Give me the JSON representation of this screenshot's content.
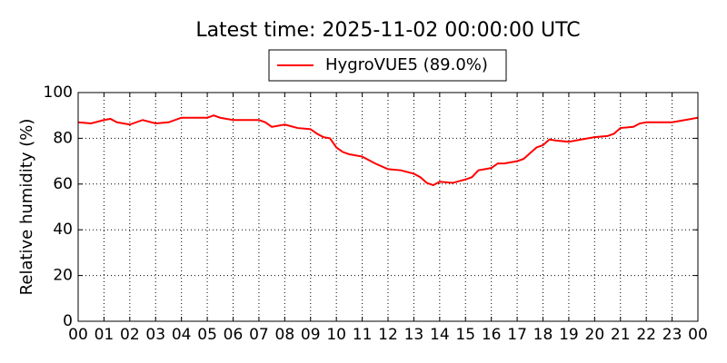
{
  "chart_data": {
    "type": "line",
    "title": "Latest time: 2025-11-02 00:00:00 UTC",
    "ylabel": "Relative humidity (%)",
    "x": [
      0,
      0.5,
      1,
      1.25,
      1.5,
      2,
      2.5,
      3,
      3.5,
      4,
      4.5,
      5,
      5.25,
      5.5,
      6,
      6.5,
      7,
      7.25,
      7.5,
      8,
      8.5,
      9,
      9.25,
      9.5,
      9.75,
      10,
      10.25,
      10.5,
      11,
      11.5,
      12,
      12.5,
      13,
      13.25,
      13.5,
      13.75,
      14,
      14.5,
      15,
      15.25,
      15.5,
      16,
      16.25,
      16.5,
      17,
      17.25,
      17.5,
      17.75,
      18,
      18.25,
      18.5,
      19,
      19.5,
      20,
      20.5,
      20.75,
      21,
      21.5,
      21.75,
      22,
      22.5,
      23,
      23.5,
      24
    ],
    "series": [
      {
        "name": "HygroVUE5 (89.0%)",
        "color": "#ff0000",
        "values": [
          87,
          86.5,
          88,
          88.5,
          87,
          86,
          88,
          86.5,
          87,
          89,
          89,
          89,
          90,
          89,
          88,
          88,
          88,
          87,
          85,
          86,
          84.5,
          84,
          82,
          80.5,
          80,
          76,
          74,
          73,
          72,
          69,
          66.5,
          66,
          64.5,
          63,
          60.5,
          59.5,
          61,
          60.5,
          62,
          63,
          66,
          67,
          69,
          69,
          70,
          71,
          73.5,
          76,
          77,
          79.5,
          79,
          78.5,
          79.5,
          80.5,
          81,
          82,
          84.5,
          85,
          86.5,
          87,
          87,
          87,
          88,
          89
        ]
      }
    ],
    "xlim": [
      0,
      24
    ],
    "xticks": [
      {
        "value": 0,
        "label": "00"
      },
      {
        "value": 1,
        "label": "01"
      },
      {
        "value": 2,
        "label": "02"
      },
      {
        "value": 3,
        "label": "03"
      },
      {
        "value": 4,
        "label": "04"
      },
      {
        "value": 5,
        "label": "05"
      },
      {
        "value": 6,
        "label": "06"
      },
      {
        "value": 7,
        "label": "07"
      },
      {
        "value": 8,
        "label": "08"
      },
      {
        "value": 9,
        "label": "09"
      },
      {
        "value": 10,
        "label": "10"
      },
      {
        "value": 11,
        "label": "11"
      },
      {
        "value": 12,
        "label": "12"
      },
      {
        "value": 13,
        "label": "13"
      },
      {
        "value": 14,
        "label": "14"
      },
      {
        "value": 15,
        "label": "15"
      },
      {
        "value": 16,
        "label": "16"
      },
      {
        "value": 17,
        "label": "17"
      },
      {
        "value": 18,
        "label": "18"
      },
      {
        "value": 19,
        "label": "19"
      },
      {
        "value": 20,
        "label": "20"
      },
      {
        "value": 21,
        "label": "21"
      },
      {
        "value": 22,
        "label": "22"
      },
      {
        "value": 23,
        "label": "23"
      },
      {
        "value": 24,
        "label": "00"
      }
    ],
    "ylim": [
      0,
      100
    ],
    "yticks": [
      0,
      20,
      40,
      60,
      80,
      100
    ],
    "grid": true,
    "legend": "top"
  }
}
